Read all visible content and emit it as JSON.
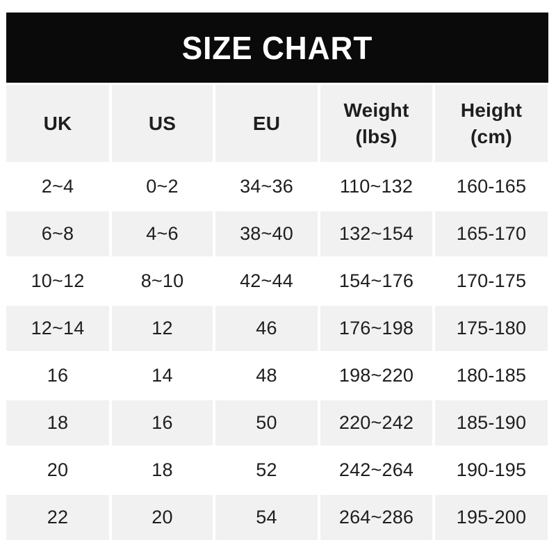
{
  "title": "SIZE CHART",
  "colors": {
    "banner_bg": "#0a0a0a",
    "banner_text": "#ffffff",
    "row_alt_bg": "#f1f1f1",
    "row_bg": "#ffffff",
    "text": "#1e1e1e",
    "page_bg": "#ffffff"
  },
  "chart_data": {
    "type": "table",
    "title": "SIZE CHART",
    "columns": [
      {
        "id": "uk",
        "label": "UK"
      },
      {
        "id": "us",
        "label": "US"
      },
      {
        "id": "eu",
        "label": "EU"
      },
      {
        "id": "weight-lbs",
        "label": "Weight\n(lbs)"
      },
      {
        "id": "height-cm",
        "label": "Height\n(cm)"
      }
    ],
    "rows": [
      [
        "2~4",
        "0~2",
        "34~36",
        "110~132",
        "160-165"
      ],
      [
        "6~8",
        "4~6",
        "38~40",
        "132~154",
        "165-170"
      ],
      [
        "10~12",
        "8~10",
        "42~44",
        "154~176",
        "170-175"
      ],
      [
        "12~14",
        "12",
        "46",
        "176~198",
        "175-180"
      ],
      [
        "16",
        "14",
        "48",
        "198~220",
        "180-185"
      ],
      [
        "18",
        "16",
        "50",
        "220~242",
        "185-190"
      ],
      [
        "20",
        "18",
        "52",
        "242~264",
        "190-195"
      ],
      [
        "22",
        "20",
        "54",
        "264~286",
        "195-200"
      ]
    ]
  }
}
